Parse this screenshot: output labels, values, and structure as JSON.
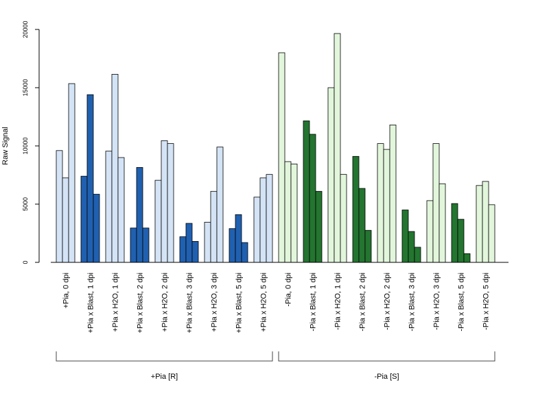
{
  "chart_data": {
    "type": "bar",
    "title": "",
    "xlabel": "",
    "ylabel": "Raw Signal",
    "ylim": [
      0,
      20000
    ],
    "yticks": [
      0,
      5000,
      10000,
      15000,
      20000
    ],
    "grid": false,
    "legend": "none",
    "bars_per_category": 3,
    "categories": [
      "+Pia, 0 dpi",
      "+Pia x Blast, 1 dpi",
      "+Pia x H2O, 1 dpi",
      "+Pia x Blast, 2 dpi",
      "+Pia x H2O, 2 dpi",
      "+Pia x Blast, 3 dpi",
      "+Pia x H2O, 3 dpi",
      "+Pia x Blast, 5 dpi",
      "+Pia x H2O, 5 dpi",
      "-Pia, 0 dpi",
      "-Pia x Blast, 1 dpi",
      "-Pia x H2O, 1 dpi",
      "-Pia x Blast, 2 dpi",
      "-Pia x H2O, 2 dpi",
      "-Pia x Blast, 3 dpi",
      "-Pia x H2O, 3 dpi",
      "-Pia x Blast, 5 dpi",
      "-Pia x H2O, 5 dpi"
    ],
    "values": [
      [
        9600,
        7250,
        15350
      ],
      [
        7400,
        14400,
        5850
      ],
      [
        9550,
        16150,
        9000
      ],
      [
        2950,
        8150,
        2950
      ],
      [
        7050,
        10450,
        10200
      ],
      [
        2200,
        3350,
        1800
      ],
      [
        3450,
        6100,
        9900
      ],
      [
        2900,
        4100,
        1700
      ],
      [
        5600,
        7250,
        7550
      ],
      [
        18000,
        8650,
        8450
      ],
      [
        12150,
        11000,
        6100
      ],
      [
        15000,
        19650,
        7550
      ],
      [
        9100,
        6350,
        2750
      ],
      [
        10200,
        9700,
        11800
      ],
      [
        4500,
        2650,
        1300
      ],
      [
        5300,
        10200,
        6750
      ],
      [
        5050,
        3700,
        750
      ],
      [
        6600,
        6950,
        4950
      ]
    ],
    "bar_colors": [
      "#d4e4f6",
      "#2060b0",
      "#d4e4f6",
      "#2060b0",
      "#d4e4f6",
      "#2060b0",
      "#d4e4f6",
      "#2060b0",
      "#d4e4f6",
      "#e2f6dc",
      "#23752f",
      "#e2f6dc",
      "#23752f",
      "#e2f6dc",
      "#23752f",
      "#e2f6dc",
      "#23752f",
      "#e2f6dc"
    ],
    "groups": [
      {
        "label": "+Pia [R]",
        "start": 0,
        "end": 8
      },
      {
        "label": "-Pia [S]",
        "start": 9,
        "end": 17
      }
    ]
  }
}
